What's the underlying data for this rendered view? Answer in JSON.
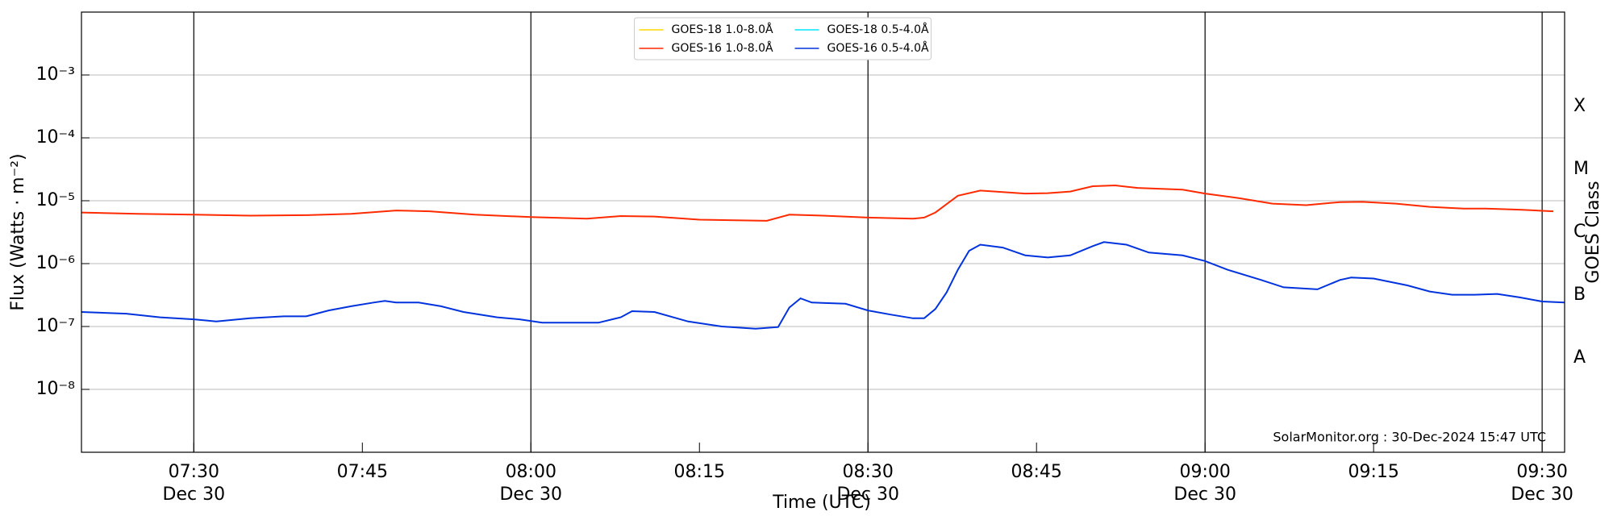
{
  "chart_data": {
    "type": "line",
    "x_label": "Time (UTC)",
    "y_label": "Flux (Watts · m⁻²)",
    "y2_label": "GOES Class",
    "annotation": "SolarMonitor.org : 30-Dec-2024 15:47 UTC",
    "log_y": true,
    "grid": true,
    "legend": "upper center",
    "xlim": [
      "07:20",
      "09:32"
    ],
    "xticks": [
      {
        "value": "07:30",
        "label": "07:30",
        "date": "Dec 30"
      },
      {
        "value": "07:45",
        "label": "07:45"
      },
      {
        "value": "08:00",
        "label": "08:00",
        "date": "Dec 30"
      },
      {
        "value": "08:15",
        "label": "08:15"
      },
      {
        "value": "08:30",
        "label": "08:30",
        "date": "Dec 30"
      },
      {
        "value": "08:45",
        "label": "08:45"
      },
      {
        "value": "09:00",
        "label": "09:00",
        "date": "Dec 30"
      },
      {
        "value": "09:15",
        "label": "09:15"
      },
      {
        "value": "09:30",
        "label": "09:30",
        "date": "Dec 30"
      }
    ],
    "ylim": [
      1e-09,
      0.01
    ],
    "yticks": [
      {
        "value": 1e-08,
        "label": "10⁻⁸"
      },
      {
        "value": 1e-07,
        "label": "10⁻⁷"
      },
      {
        "value": 1e-06,
        "label": "10⁻⁶"
      },
      {
        "value": 1e-05,
        "label": "10⁻⁵"
      },
      {
        "value": 0.0001,
        "label": "10⁻⁴"
      },
      {
        "value": 0.001,
        "label": "10⁻³"
      }
    ],
    "y2ticks": [
      {
        "value": 3.16e-08,
        "label": "A"
      },
      {
        "value": 3.16e-07,
        "label": "B"
      },
      {
        "value": 3.16e-06,
        "label": "C"
      },
      {
        "value": 3.16e-05,
        "label": "M"
      },
      {
        "value": 0.000316,
        "label": "X"
      }
    ],
    "series": [
      {
        "name": "GOES-18 1.0-8.0Å",
        "color": "#ffd700",
        "x": [],
        "values": []
      },
      {
        "name": "GOES-16 1.0-8.0Å",
        "color": "#ff2a00",
        "x": [
          "07:20",
          "07:25",
          "07:30",
          "07:35",
          "07:40",
          "07:44",
          "07:48",
          "07:51",
          "07:55",
          "08:00",
          "08:05",
          "08:08",
          "08:11",
          "08:15",
          "08:21",
          "08:23",
          "08:26",
          "08:30",
          "08:34",
          "08:35",
          "08:36",
          "08:38",
          "08:40",
          "08:44",
          "08:46",
          "08:48",
          "08:50",
          "08:52",
          "08:54",
          "08:58",
          "09:00",
          "09:03",
          "09:06",
          "09:09",
          "09:12",
          "09:14",
          "09:17",
          "09:20",
          "09:23",
          "09:25",
          "09:28",
          "09:31"
        ],
        "values": [
          6.5e-06,
          6.2e-06,
          6e-06,
          5.8e-06,
          5.9e-06,
          6.2e-06,
          7e-06,
          6.8e-06,
          6e-06,
          5.5e-06,
          5.2e-06,
          5.7e-06,
          5.6e-06,
          5e-06,
          4.8e-06,
          6e-06,
          5.8e-06,
          5.4e-06,
          5.2e-06,
          5.4e-06,
          6.5e-06,
          1.2e-05,
          1.45e-05,
          1.3e-05,
          1.32e-05,
          1.4e-05,
          1.7e-05,
          1.75e-05,
          1.6e-05,
          1.5e-05,
          1.3e-05,
          1.1e-05,
          9e-06,
          8.5e-06,
          9.5e-06,
          9.6e-06,
          9e-06,
          8e-06,
          7.5e-06,
          7.5e-06,
          7.2e-06,
          6.8e-06
        ]
      },
      {
        "name": "GOES-18 0.5-4.0Å",
        "color": "#00e5ff",
        "x": [],
        "values": []
      },
      {
        "name": "GOES-16 0.5-4.0Å",
        "color": "#0033dd",
        "x": [
          "07:20",
          "07:24",
          "07:27",
          "07:30",
          "07:32",
          "07:35",
          "07:38",
          "07:40",
          "07:42",
          "07:44",
          "07:46",
          "07:47",
          "07:48",
          "07:50",
          "07:52",
          "07:54",
          "07:57",
          "07:59",
          "08:01",
          "08:04",
          "08:06",
          "08:08",
          "08:09",
          "08:11",
          "08:14",
          "08:17",
          "08:20",
          "08:22",
          "08:23",
          "08:24",
          "08:25",
          "08:28",
          "08:30",
          "08:32",
          "08:34",
          "08:35",
          "08:36",
          "08:37",
          "08:38",
          "08:39",
          "08:40",
          "08:42",
          "08:44",
          "08:46",
          "08:48",
          "08:50",
          "08:51",
          "08:53",
          "08:55",
          "08:58",
          "09:00",
          "09:02",
          "09:05",
          "09:07",
          "09:10",
          "09:12",
          "09:13",
          "09:15",
          "09:18",
          "09:20",
          "09:22",
          "09:24",
          "09:26",
          "09:28",
          "09:30",
          "09:32"
        ],
        "values": [
          1.7e-07,
          1.6e-07,
          1.4e-07,
          1.3e-07,
          1.2e-07,
          1.35e-07,
          1.45e-07,
          1.45e-07,
          1.8e-07,
          2.1e-07,
          2.4e-07,
          2.55e-07,
          2.4e-07,
          2.4e-07,
          2.1e-07,
          1.7e-07,
          1.4e-07,
          1.3e-07,
          1.15e-07,
          1.15e-07,
          1.15e-07,
          1.4e-07,
          1.75e-07,
          1.7e-07,
          1.2e-07,
          1e-07,
          9.2e-08,
          9.8e-08,
          2e-07,
          2.8e-07,
          2.4e-07,
          2.3e-07,
          1.8e-07,
          1.55e-07,
          1.35e-07,
          1.35e-07,
          1.9e-07,
          3.5e-07,
          8e-07,
          1.6e-06,
          2e-06,
          1.8e-06,
          1.35e-06,
          1.25e-06,
          1.35e-06,
          1.9e-06,
          2.2e-06,
          2e-06,
          1.5e-06,
          1.35e-06,
          1.1e-06,
          8e-07,
          5.5e-07,
          4.2e-07,
          3.9e-07,
          5.5e-07,
          6e-07,
          5.8e-07,
          4.5e-07,
          3.6e-07,
          3.2e-07,
          3.2e-07,
          3.3e-07,
          2.9e-07,
          2.5e-07,
          2.4e-07
        ]
      }
    ]
  }
}
